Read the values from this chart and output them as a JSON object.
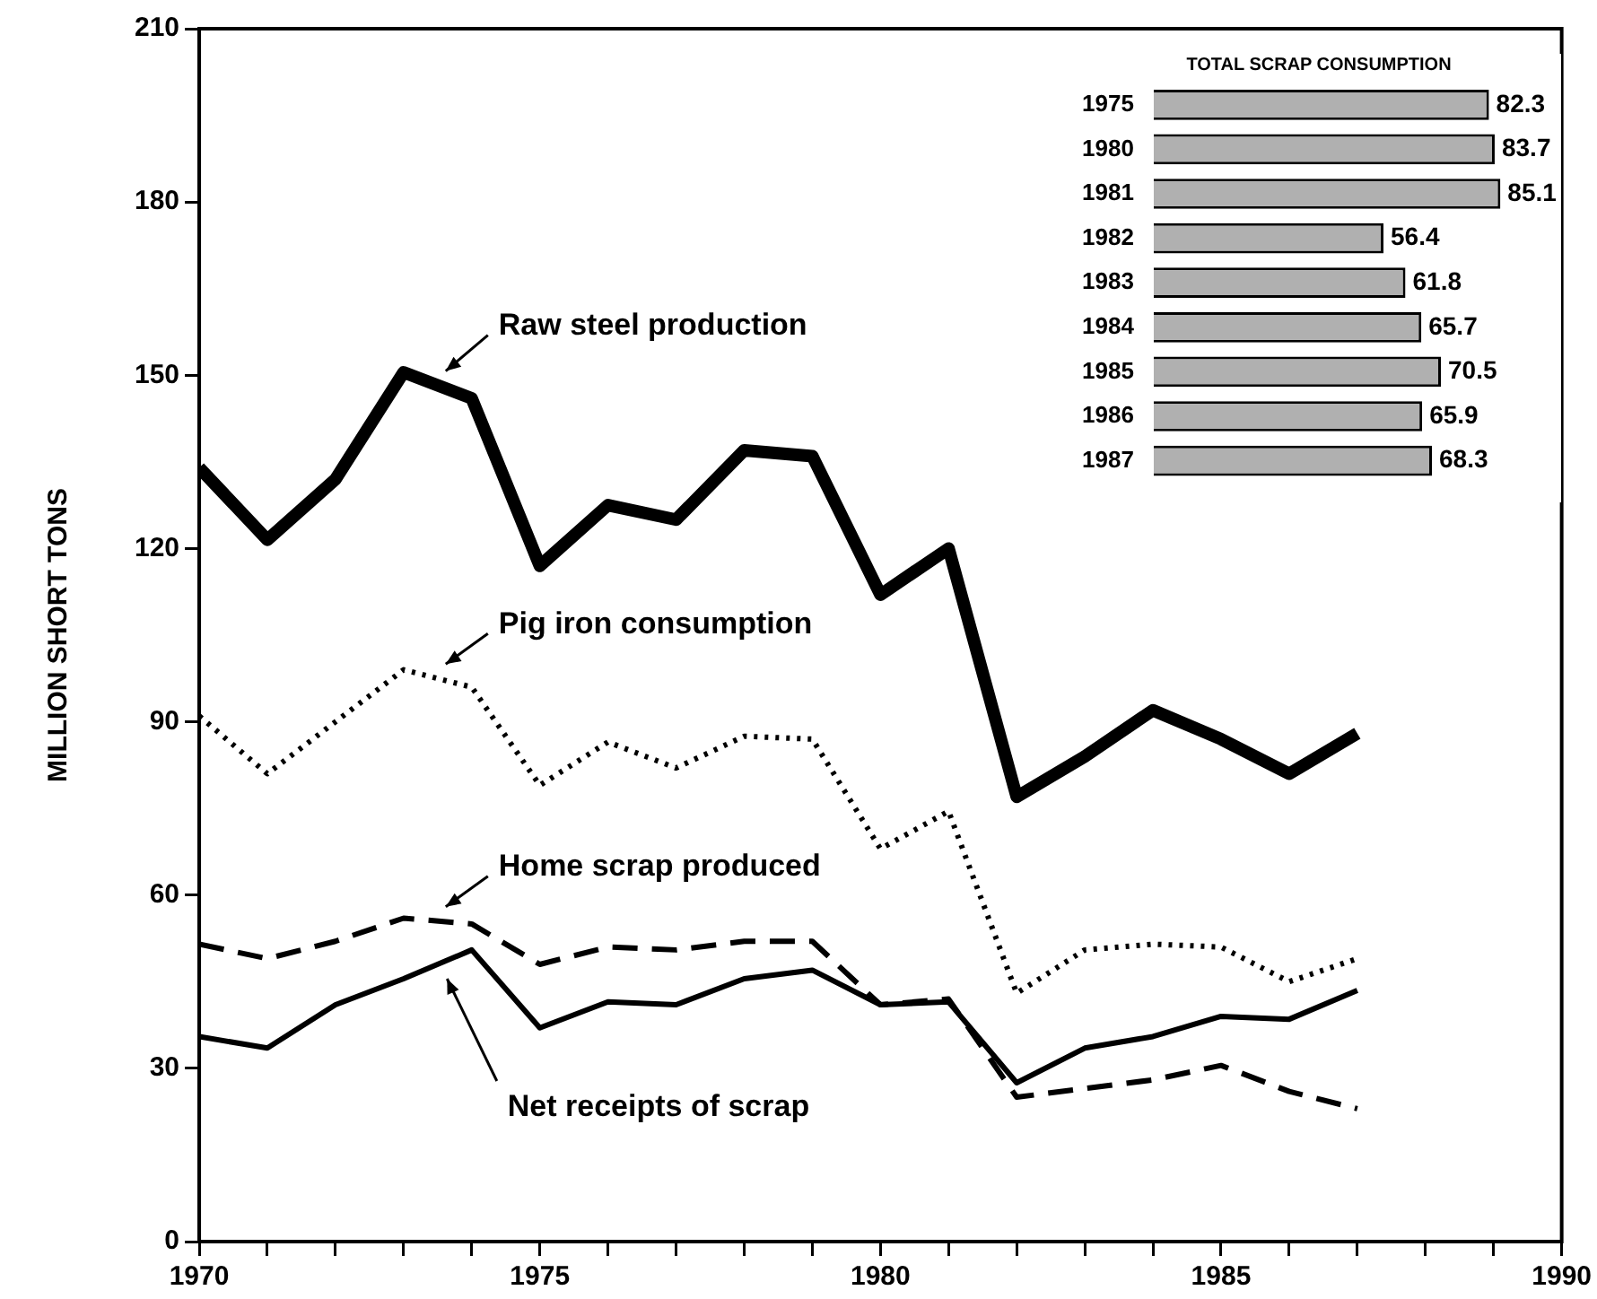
{
  "chart_data": [
    {
      "type": "line",
      "ylabel": "MILLION SHORT TONS",
      "x": [
        1970,
        1971,
        1972,
        1973,
        1974,
        1975,
        1976,
        1977,
        1978,
        1979,
        1980,
        1981,
        1982,
        1983,
        1984,
        1985,
        1986,
        1987
      ],
      "series": [
        {
          "name": "Raw steel production",
          "color": "#000000",
          "line_style": "solid",
          "values": [
            134,
            121.5,
            132,
            150.5,
            146,
            117,
            127.5,
            125,
            137,
            136,
            112,
            120,
            77,
            84,
            92,
            87,
            81,
            88
          ]
        },
        {
          "name": "Pig iron consumption",
          "color": "#000000",
          "line_style": "dotted",
          "values": [
            91,
            81,
            90,
            99,
            96,
            79,
            86.5,
            82,
            87.5,
            87,
            68,
            74.5,
            43,
            50.5,
            51.5,
            51,
            45,
            49
          ]
        },
        {
          "name": "Home scrap produced",
          "color": "#000000",
          "line_style": "dashed",
          "values": [
            51.5,
            49,
            52,
            56,
            55,
            48,
            51,
            50.5,
            52,
            52,
            41,
            42,
            25,
            26.5,
            28,
            30.5,
            26,
            23
          ]
        },
        {
          "name": "Net receipts of scrap",
          "color": "#000000",
          "line_style": "solid",
          "values": [
            35.5,
            33.5,
            41,
            45.5,
            50.5,
            37,
            41.5,
            41,
            45.5,
            47,
            41,
            41.5,
            27.5,
            33.5,
            35.5,
            39,
            38.5,
            43.5
          ]
        }
      ],
      "xlim": [
        1970,
        1990
      ],
      "xticks": [
        1970,
        {
          "value": 1971,
          "label": null
        },
        {
          "value": 1972,
          "label": null
        },
        {
          "value": 1973,
          "label": null
        },
        {
          "value": 1974,
          "label": null
        },
        1975,
        {
          "value": 1976,
          "label": null
        },
        {
          "value": 1977,
          "label": null
        },
        {
          "value": 1978,
          "label": null
        },
        {
          "value": 1979,
          "label": null
        },
        1980,
        {
          "value": 1981,
          "label": null
        },
        {
          "value": 1982,
          "label": null
        },
        {
          "value": 1983,
          "label": null
        },
        {
          "value": 1984,
          "label": null
        },
        1985,
        {
          "value": 1986,
          "label": null
        },
        {
          "value": 1987,
          "label": null
        },
        {
          "value": 1988,
          "label": null
        },
        {
          "value": 1989,
          "label": null
        },
        1990
      ],
      "ylim": [
        0,
        210
      ],
      "yticks": [
        0,
        30,
        60,
        90,
        120,
        150,
        180,
        210
      ],
      "grid": false,
      "legend": false,
      "marker": "none"
    },
    {
      "type": "bar",
      "orientation": "horizontal",
      "title": "TOTAL SCRAP CONSUMPTION",
      "categories": [
        "1975",
        "1980",
        "1981",
        "1982",
        "1983",
        "1984",
        "1985",
        "1986",
        "1987"
      ],
      "values": [
        82.3,
        83.7,
        85.1,
        56.4,
        61.8,
        65.7,
        70.5,
        65.9,
        68.3
      ],
      "color": "#b0b0b0",
      "xlim": [
        0,
        100
      ],
      "tick_labels": "y",
      "data_labels": true,
      "grid": false,
      "legend": false
    }
  ]
}
